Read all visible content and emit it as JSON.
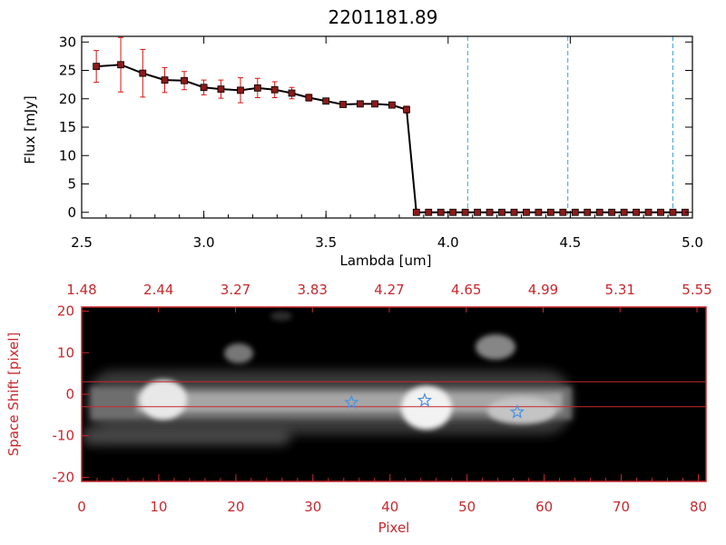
{
  "chart_data": [
    {
      "type": "line",
      "title": "2201181.89",
      "xlabel": "Lambda [um]",
      "ylabel": "Flux [mJy]",
      "xlim": [
        2.5,
        5.0
      ],
      "ylim": [
        -1,
        31
      ],
      "xticks": [
        "2.5",
        "3.0",
        "3.5",
        "4.0",
        "4.5",
        "5.0"
      ],
      "yticks": [
        "0",
        "5",
        "10",
        "15",
        "20",
        "25",
        "30"
      ],
      "series": [
        {
          "x": [
            2.56,
            2.66,
            2.75,
            2.84,
            2.92,
            3.0,
            3.07,
            3.15,
            3.22,
            3.29,
            3.36,
            3.43,
            3.5,
            3.57,
            3.64,
            3.7,
            3.77,
            3.83
          ],
          "y": [
            25.7,
            26.0,
            24.5,
            23.3,
            23.2,
            22.0,
            21.7,
            21.5,
            21.9,
            21.6,
            21.0,
            20.2,
            19.6,
            19.0,
            19.1,
            19.1,
            18.9,
            18.1
          ],
          "err": [
            2.8,
            4.8,
            4.2,
            2.2,
            1.6,
            1.3,
            1.6,
            2.2,
            1.7,
            1.4,
            1.0,
            0.6,
            0.5,
            0.4,
            0.4,
            0.3,
            0.3,
            0.6
          ]
        },
        {
          "x": [
            3.87,
            3.92,
            3.97,
            4.02,
            4.07,
            4.12,
            4.17,
            4.22,
            4.27,
            4.32,
            4.37,
            4.42,
            4.47,
            4.52,
            4.57,
            4.62,
            4.67,
            4.72,
            4.77,
            4.82,
            4.87,
            4.92,
            4.97
          ],
          "y": [
            0,
            0,
            0,
            0,
            0,
            0,
            0,
            0,
            0,
            0,
            0,
            0,
            0,
            0,
            0,
            0,
            0,
            0,
            0,
            0,
            0,
            0,
            0
          ]
        }
      ],
      "vlines": [
        4.08,
        4.49,
        4.92
      ],
      "colors": {
        "line": "#000000",
        "marker": "#8b1a1a",
        "error": "#dd1111",
        "vline": "#3ba0d8"
      }
    },
    {
      "type": "heatmap",
      "xlabel": "Pixel",
      "ylabel": "Space Shift [pixel]",
      "xlim": [
        0,
        81
      ],
      "ylim": [
        -21,
        21
      ],
      "xticks": [
        "0",
        "10",
        "20",
        "30",
        "40",
        "50",
        "60",
        "70",
        "80"
      ],
      "yticks": [
        "-20",
        "-10",
        "0",
        "10",
        "20"
      ],
      "top_ticks": [
        "1.48",
        "2.44",
        "3.27",
        "3.83",
        "4.27",
        "4.65",
        "4.99",
        "5.31",
        "5.55"
      ],
      "hlines": [
        3,
        -3
      ],
      "stars": [
        {
          "x": 35,
          "y": -2
        },
        {
          "x": 44.5,
          "y": -1.5
        },
        {
          "x": 56.5,
          "y": -4.3
        }
      ],
      "colors": {
        "frame": "#c8282d",
        "star": "#4a90e2"
      }
    }
  ]
}
